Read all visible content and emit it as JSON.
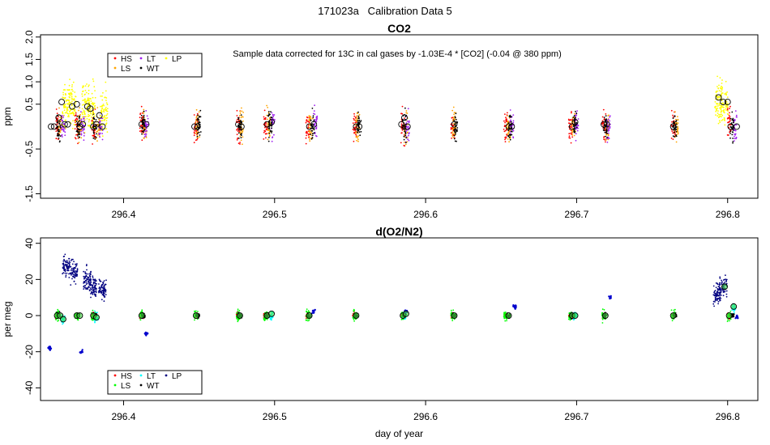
{
  "page_title": "171023a   Calibration Data 5",
  "colors": {
    "HS": "#ff0000",
    "LS": "#ffa500",
    "LT": "#a020f0",
    "WT": "#000000",
    "LP": "#ffff00",
    "HS2": "#ff0000",
    "LS2": "#00ff00",
    "LT2": "#00ffff",
    "WT2": "#000000",
    "LP2": "#000080"
  },
  "chart_data": [
    {
      "type": "scatter",
      "title": "CO2",
      "annotation": "Sample data corrected for 13C in cal gases by -1.03E-4 * [CO2] (-0.04 @ 380 ppm)",
      "xlabel": "",
      "ylabel": "ppm",
      "xlim": [
        296.345,
        296.82
      ],
      "ylim": [
        -1.6,
        2.05
      ],
      "xticks": [
        296.4,
        296.5,
        296.6,
        296.7,
        296.8
      ],
      "yticks": [
        -1.5,
        -0.5,
        0.5,
        1.0,
        1.5,
        2.0
      ],
      "ytick_labels": [
        "-1.5",
        "-0.5",
        "0.5",
        "1.0",
        "1.5",
        "2.0"
      ],
      "legend": [
        "HS",
        "LS",
        "LT",
        "WT",
        "LP"
      ],
      "legend_position": "top-left",
      "series": [
        {
          "name": "HS",
          "color": "#ff0000",
          "x": [
            296.356,
            296.369,
            296.38,
            296.412,
            296.448,
            296.476,
            296.494,
            296.522,
            296.553,
            296.585,
            296.618,
            296.653,
            296.696,
            296.718,
            296.764,
            296.801
          ],
          "y": [
            0.0,
            0.0,
            0.0,
            0.05,
            0.0,
            0.0,
            0.0,
            0.0,
            0.0,
            0.0,
            0.0,
            0.0,
            0.0,
            0.0,
            0.0,
            0.05
          ],
          "spread": 0.35
        },
        {
          "name": "LS",
          "color": "#ffa500",
          "x": [
            296.358,
            296.371,
            296.383,
            296.414,
            296.449,
            296.478,
            296.496,
            296.524,
            296.555,
            296.587,
            296.619,
            296.655,
            296.698,
            296.72,
            296.766
          ],
          "y": [
            0.0,
            0.0,
            0.0,
            0.05,
            0.0,
            0.0,
            0.05,
            0.0,
            0.0,
            0.0,
            0.05,
            0.0,
            0.0,
            0.0,
            0.0
          ],
          "spread": 0.35
        },
        {
          "name": "LT",
          "color": "#a020f0",
          "x": [
            296.36,
            296.373,
            296.385,
            296.415,
            296.499,
            296.527,
            296.588,
            296.657,
            296.7,
            296.721,
            296.805
          ],
          "y": [
            0.0,
            0.0,
            0.0,
            0.05,
            0.05,
            0.05,
            0.0,
            0.0,
            0.05,
            0.0,
            0.0
          ],
          "spread": 0.3
        },
        {
          "name": "WT",
          "color": "#000000",
          "x": [
            296.357,
            296.37,
            296.381,
            296.413,
            296.45,
            296.477,
            296.497,
            296.525,
            296.556,
            296.586,
            296.62,
            296.656,
            296.699,
            296.719,
            296.765,
            296.803
          ],
          "y": [
            0.0,
            0.0,
            0.0,
            0.05,
            0.0,
            0.0,
            0.05,
            0.0,
            0.0,
            0.0,
            0.0,
            0.0,
            0.05,
            0.0,
            0.0,
            0.0
          ],
          "spread": 0.3
        },
        {
          "name": "LP",
          "color": "#ffff00",
          "x": [
            296.362,
            296.366,
            296.375,
            296.379,
            296.387,
            296.794,
            296.798
          ],
          "y": [
            0.5,
            0.5,
            0.5,
            0.4,
            0.3,
            0.6,
            0.5
          ],
          "spread": 0.5
        }
      ],
      "means": [
        {
          "x": 296.352,
          "y": 0.0
        },
        {
          "x": 296.354,
          "y": 0.0
        },
        {
          "x": 296.357,
          "y": 0.2
        },
        {
          "x": 296.359,
          "y": 0.55
        },
        {
          "x": 296.361,
          "y": 0.05
        },
        {
          "x": 296.363,
          "y": 0.05
        },
        {
          "x": 296.366,
          "y": 0.45
        },
        {
          "x": 296.369,
          "y": 0.5
        },
        {
          "x": 296.371,
          "y": 0.0
        },
        {
          "x": 296.373,
          "y": 0.05
        },
        {
          "x": 296.376,
          "y": 0.45
        },
        {
          "x": 296.378,
          "y": 0.4
        },
        {
          "x": 296.38,
          "y": 0.0
        },
        {
          "x": 296.382,
          "y": 0.05
        },
        {
          "x": 296.384,
          "y": 0.25
        },
        {
          "x": 296.386,
          "y": 0.0
        },
        {
          "x": 296.412,
          "y": 0.05
        },
        {
          "x": 296.415,
          "y": 0.05
        },
        {
          "x": 296.447,
          "y": 0.0
        },
        {
          "x": 296.449,
          "y": 0.0
        },
        {
          "x": 296.476,
          "y": 0.05
        },
        {
          "x": 296.478,
          "y": 0.0
        },
        {
          "x": 296.495,
          "y": 0.05
        },
        {
          "x": 296.498,
          "y": 0.1
        },
        {
          "x": 296.523,
          "y": 0.0
        },
        {
          "x": 296.526,
          "y": 0.05
        },
        {
          "x": 296.554,
          "y": 0.0
        },
        {
          "x": 296.556,
          "y": 0.0
        },
        {
          "x": 296.584,
          "y": 0.05
        },
        {
          "x": 296.586,
          "y": 0.2
        },
        {
          "x": 296.588,
          "y": 0.0
        },
        {
          "x": 296.619,
          "y": 0.05
        },
        {
          "x": 296.655,
          "y": 0.0
        },
        {
          "x": 296.657,
          "y": 0.0
        },
        {
          "x": 296.697,
          "y": 0.0
        },
        {
          "x": 296.699,
          "y": 0.1
        },
        {
          "x": 296.718,
          "y": 0.05
        },
        {
          "x": 296.72,
          "y": 0.05
        },
        {
          "x": 296.764,
          "y": 0.0
        },
        {
          "x": 296.794,
          "y": 0.65
        },
        {
          "x": 296.797,
          "y": 0.55
        },
        {
          "x": 296.8,
          "y": 0.55
        },
        {
          "x": 296.802,
          "y": 0.0
        },
        {
          "x": 296.806,
          "y": 0.0
        }
      ]
    },
    {
      "type": "scatter",
      "title": "d(O2/N2)",
      "xlabel": "day of year",
      "ylabel": "per meg",
      "xlim": [
        296.345,
        296.82
      ],
      "ylim": [
        -47,
        43
      ],
      "xticks": [
        296.4,
        296.5,
        296.6,
        296.7,
        296.8
      ],
      "yticks": [
        -40,
        -20,
        0,
        20,
        40
      ],
      "ytick_labels": [
        "-40",
        "-20",
        "0",
        "20",
        "40"
      ],
      "legend": [
        "HS",
        "LS",
        "LT",
        "WT",
        "LP"
      ],
      "legend_position": "bottom-left",
      "series": [
        {
          "name": "HS",
          "color": "#ff0000",
          "x": [
            296.356,
            296.369,
            296.38,
            296.412,
            296.448,
            296.476,
            296.494,
            296.522,
            296.553,
            296.585,
            296.618,
            296.653,
            296.696,
            296.718,
            296.764,
            296.801
          ],
          "y": [
            0,
            0,
            0,
            0,
            0,
            0,
            0,
            0,
            0,
            0,
            0,
            0,
            0,
            0,
            0,
            0
          ],
          "spread": 1.5
        },
        {
          "name": "LS",
          "color": "#00ff00",
          "x": [
            296.356,
            296.369,
            296.38,
            296.412,
            296.448,
            296.476,
            296.494,
            296.522,
            296.553,
            296.585,
            296.618,
            296.653,
            296.696,
            296.718,
            296.764,
            296.801
          ],
          "y": [
            0,
            0,
            0,
            0,
            0,
            0,
            0,
            0,
            0,
            0,
            0,
            0,
            0,
            0,
            0,
            0
          ],
          "spread": 3
        },
        {
          "name": "LT",
          "color": "#00ffff",
          "x": [
            296.36,
            296.382,
            296.498,
            296.586,
            296.699,
            296.804
          ],
          "y": [
            -2,
            -1,
            0,
            0,
            0,
            4
          ],
          "spread": 2.5
        },
        {
          "name": "WT",
          "color": "#000000",
          "x": [
            296.357,
            296.37,
            296.381,
            296.413,
            296.449,
            296.477,
            296.495,
            296.523,
            296.554,
            296.586,
            296.619,
            296.655,
            296.697,
            296.719,
            296.765,
            296.803
          ],
          "y": [
            0,
            0,
            0,
            0,
            0,
            0,
            0,
            0,
            0,
            0,
            0,
            0,
            0,
            0,
            0,
            0
          ],
          "spread": 1.5
        },
        {
          "name": "LP",
          "color": "#000080",
          "x": [
            296.362,
            296.367,
            296.376,
            296.38,
            296.386,
            296.793,
            296.797
          ],
          "y": [
            28,
            24,
            20,
            16,
            15,
            12,
            16
          ],
          "spread": 6
        }
      ],
      "offsets": [
        {
          "x": 296.351,
          "y": -18
        },
        {
          "x": 296.372,
          "y": -20
        },
        {
          "x": 296.415,
          "y": -10
        },
        {
          "x": 296.526,
          "y": 2
        },
        {
          "x": 296.587,
          "y": 2
        },
        {
          "x": 296.659,
          "y": 5
        },
        {
          "x": 296.722,
          "y": 10
        },
        {
          "x": 296.806,
          "y": -1
        }
      ],
      "means": [
        {
          "x": 296.356,
          "y": 0
        },
        {
          "x": 296.358,
          "y": 0
        },
        {
          "x": 296.36,
          "y": -2
        },
        {
          "x": 296.369,
          "y": 0
        },
        {
          "x": 296.371,
          "y": 0
        },
        {
          "x": 296.38,
          "y": 0
        },
        {
          "x": 296.382,
          "y": -1
        },
        {
          "x": 296.412,
          "y": 0
        },
        {
          "x": 296.448,
          "y": 0
        },
        {
          "x": 296.477,
          "y": 0
        },
        {
          "x": 296.495,
          "y": 0
        },
        {
          "x": 296.498,
          "y": 1
        },
        {
          "x": 296.523,
          "y": 0
        },
        {
          "x": 296.554,
          "y": 0
        },
        {
          "x": 296.585,
          "y": 0
        },
        {
          "x": 296.587,
          "y": 1
        },
        {
          "x": 296.619,
          "y": 0
        },
        {
          "x": 296.655,
          "y": 0
        },
        {
          "x": 296.697,
          "y": 0
        },
        {
          "x": 296.699,
          "y": 0
        },
        {
          "x": 296.719,
          "y": 0
        },
        {
          "x": 296.764,
          "y": 0
        },
        {
          "x": 296.798,
          "y": 16
        },
        {
          "x": 296.801,
          "y": 0
        },
        {
          "x": 296.804,
          "y": 5
        }
      ]
    }
  ]
}
